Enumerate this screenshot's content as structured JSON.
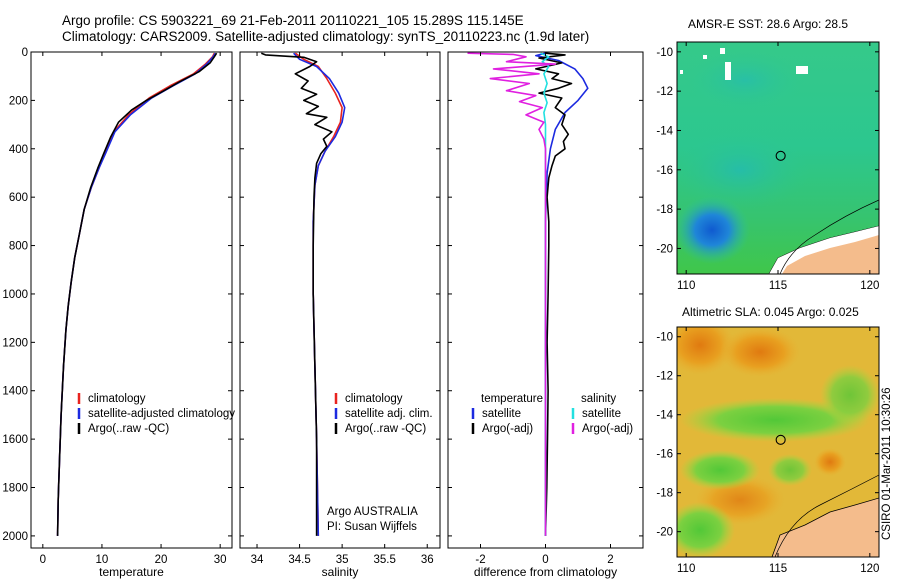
{
  "header": {
    "title_line1": "Argo profile: CS 5903221_69 21-Feb-2011 20110221_105 15.289S 115.145E",
    "title_line2": "Climatology: CARS2009. Satellite-adjusted climatology: synTS_20110223.nc (1.9d later)"
  },
  "stamp": "CSIRO 01-Mar-2011 10:30:26",
  "chart_data": [
    {
      "type": "line",
      "xlabel": "temperature",
      "xlim": [
        -2,
        32
      ],
      "ylim": [
        0,
        2050
      ],
      "y_reversed": true,
      "xticks": [
        0,
        10,
        20,
        30
      ],
      "yticks": [
        0,
        200,
        400,
        600,
        800,
        1000,
        1200,
        1400,
        1600,
        1800,
        2000
      ],
      "legend": {
        "placement": "lower-right",
        "entries": [
          "climatology",
          "satellite-adjusted climatology",
          "Argo(..raw -QC)"
        ]
      },
      "series": [
        {
          "name": "climatology",
          "color": "#e8231f",
          "points": [
            [
              29,
              5
            ],
            [
              28.7,
              20
            ],
            [
              27.5,
              50
            ],
            [
              25.5,
              90
            ],
            [
              21.5,
              140
            ],
            [
              18,
              190
            ],
            [
              14.5,
              260
            ],
            [
              12,
              330
            ],
            [
              10.5,
              420
            ],
            [
              9.5,
              480
            ],
            [
              8.2,
              560
            ],
            [
              7,
              650
            ],
            [
              6.2,
              750
            ],
            [
              5.4,
              850
            ],
            [
              4.8,
              950
            ],
            [
              4.3,
              1050
            ],
            [
              3.9,
              1150
            ],
            [
              3.5,
              1300
            ],
            [
              3.1,
              1500
            ],
            [
              2.8,
              1700
            ],
            [
              2.6,
              1850
            ],
            [
              2.5,
              2000
            ]
          ]
        },
        {
          "name": "satellite-adjusted climatology",
          "color": "#1c2ae0",
          "points": [
            [
              29.2,
              5
            ],
            [
              28.8,
              20
            ],
            [
              27.7,
              50
            ],
            [
              25.8,
              90
            ],
            [
              22,
              140
            ],
            [
              18.4,
              190
            ],
            [
              14.8,
              260
            ],
            [
              12.2,
              330
            ],
            [
              10.6,
              420
            ],
            [
              9.5,
              480
            ],
            [
              8.2,
              560
            ],
            [
              7,
              650
            ],
            [
              6.2,
              750
            ],
            [
              5.4,
              850
            ],
            [
              4.8,
              950
            ],
            [
              4.3,
              1050
            ],
            [
              3.9,
              1150
            ],
            [
              3.5,
              1300
            ],
            [
              3.1,
              1500
            ],
            [
              2.8,
              1700
            ],
            [
              2.6,
              1850
            ],
            [
              2.5,
              2000
            ]
          ]
        },
        {
          "name": "Argo(..raw -QC)",
          "color": "#000000",
          "points": [
            [
              29.4,
              5
            ],
            [
              29,
              20
            ],
            [
              28.3,
              45
            ],
            [
              26.5,
              80
            ],
            [
              23,
              125
            ],
            [
              20.5,
              160
            ],
            [
              17.5,
              200
            ],
            [
              15,
              240
            ],
            [
              12.8,
              290
            ],
            [
              11.5,
              350
            ],
            [
              10.3,
              420
            ],
            [
              9.3,
              480
            ],
            [
              8.1,
              560
            ],
            [
              7,
              650
            ],
            [
              6.2,
              750
            ],
            [
              5.4,
              850
            ],
            [
              4.8,
              950
            ],
            [
              4.3,
              1050
            ],
            [
              3.9,
              1150
            ],
            [
              3.5,
              1300
            ],
            [
              3.1,
              1500
            ],
            [
              2.8,
              1700
            ],
            [
              2.6,
              1850
            ],
            [
              2.5,
              2000
            ]
          ]
        }
      ]
    },
    {
      "type": "line",
      "xlabel": "salinity",
      "xlim": [
        33.8,
        36.15
      ],
      "ylim": [
        0,
        2050
      ],
      "y_reversed": true,
      "xticks": [
        34,
        34.5,
        35,
        35.5,
        36
      ],
      "legend": {
        "placement": "lower-right",
        "entries": [
          "climatology",
          "satellite adj. clim.",
          "Argo(..raw -QC)"
        ]
      },
      "annotation": [
        "Argo AUSTRALIA",
        "PI: Susan Wijffels"
      ],
      "series": [
        {
          "name": "climatology",
          "color": "#e8231f",
          "points": [
            [
              34.45,
              5
            ],
            [
              34.55,
              30
            ],
            [
              34.72,
              60
            ],
            [
              34.82,
              110
            ],
            [
              34.92,
              170
            ],
            [
              35.0,
              230
            ],
            [
              34.98,
              290
            ],
            [
              34.9,
              350
            ],
            [
              34.8,
              410
            ],
            [
              34.72,
              470
            ],
            [
              34.68,
              550
            ],
            [
              34.66,
              700
            ],
            [
              34.66,
              1000
            ],
            [
              34.68,
              1300
            ],
            [
              34.7,
              1600
            ],
            [
              34.72,
              2000
            ]
          ]
        },
        {
          "name": "satellite adj. clim.",
          "color": "#1c2ae0",
          "points": [
            [
              34.43,
              5
            ],
            [
              34.5,
              30
            ],
            [
              34.7,
              60
            ],
            [
              34.85,
              110
            ],
            [
              34.96,
              170
            ],
            [
              35.03,
              230
            ],
            [
              35.0,
              290
            ],
            [
              34.92,
              350
            ],
            [
              34.8,
              410
            ],
            [
              34.72,
              470
            ],
            [
              34.68,
              550
            ],
            [
              34.66,
              700
            ],
            [
              34.66,
              1000
            ],
            [
              34.68,
              1300
            ],
            [
              34.7,
              1600
            ],
            [
              34.72,
              2000
            ]
          ]
        },
        {
          "name": "Argo(..raw -QC)",
          "color": "#000000",
          "points": [
            [
              34.05,
              5
            ],
            [
              34.1,
              12
            ],
            [
              34.55,
              22
            ],
            [
              34.7,
              40
            ],
            [
              34.62,
              60
            ],
            [
              34.45,
              90
            ],
            [
              34.6,
              120
            ],
            [
              34.52,
              150
            ],
            [
              34.7,
              175
            ],
            [
              34.55,
              200
            ],
            [
              34.72,
              225
            ],
            [
              34.58,
              255
            ],
            [
              34.82,
              270
            ],
            [
              34.68,
              300
            ],
            [
              34.88,
              330
            ],
            [
              34.78,
              360
            ],
            [
              34.82,
              390
            ],
            [
              34.75,
              420
            ],
            [
              34.7,
              460
            ],
            [
              34.68,
              520
            ],
            [
              34.67,
              600
            ],
            [
              34.66,
              800
            ],
            [
              34.66,
              1000
            ],
            [
              34.68,
              1300
            ],
            [
              34.7,
              1600
            ],
            [
              34.7,
              2000
            ]
          ]
        }
      ]
    },
    {
      "type": "line",
      "xlabel": "difference from climatology",
      "xlim": [
        -3,
        3
      ],
      "ylim": [
        0,
        2050
      ],
      "y_reversed": true,
      "xticks": [
        -2,
        0,
        2
      ],
      "legend": {
        "placement": "lower-center",
        "groups": [
          {
            "title": "temperature",
            "entries": [
              "satellite",
              "Argo(-adj)"
            ]
          },
          {
            "title": "salinity",
            "entries": [
              "satellite",
              "Argo(-adj)"
            ]
          }
        ]
      },
      "series": [
        {
          "name": "satellite",
          "group": "temperature",
          "color": "#1c2ae0",
          "points": [
            [
              0,
              5
            ],
            [
              -0.3,
              15
            ],
            [
              0.4,
              35
            ],
            [
              0.9,
              70
            ],
            [
              1.15,
              110
            ],
            [
              1.3,
              150
            ],
            [
              1.0,
              200
            ],
            [
              0.6,
              250
            ],
            [
              0.3,
              320
            ],
            [
              0.15,
              400
            ],
            [
              0.05,
              500
            ],
            [
              0,
              700
            ],
            [
              0,
              1000
            ],
            [
              0,
              2000
            ]
          ]
        },
        {
          "name": "Argo(-adj)",
          "group": "temperature",
          "color": "#000000",
          "points": [
            [
              0,
              5
            ],
            [
              0.6,
              12
            ],
            [
              -0.2,
              25
            ],
            [
              0.5,
              45
            ],
            [
              -0.3,
              70
            ],
            [
              0.4,
              90
            ],
            [
              0.2,
              110
            ],
            [
              0.8,
              130
            ],
            [
              0.4,
              150
            ],
            [
              -0.2,
              170
            ],
            [
              0.5,
              190
            ],
            [
              0.3,
              230
            ],
            [
              0.6,
              260
            ],
            [
              0.5,
              300
            ],
            [
              0.7,
              340
            ],
            [
              0.55,
              370
            ],
            [
              0.6,
              400
            ],
            [
              0.3,
              430
            ],
            [
              0.2,
              470
            ],
            [
              0.1,
              520
            ],
            [
              0.05,
              600
            ],
            [
              0.1,
              700
            ],
            [
              0.1,
              800
            ],
            [
              0.08,
              1000
            ],
            [
              0.05,
              1200
            ],
            [
              0.08,
              1400
            ],
            [
              0.06,
              1600
            ],
            [
              0.04,
              1800
            ],
            [
              0,
              2000
            ]
          ]
        },
        {
          "name": "satellite",
          "group": "salinity",
          "color": "#22e0e0",
          "points": [
            [
              -0.15,
              5
            ],
            [
              0.1,
              20
            ],
            [
              -0.1,
              40
            ],
            [
              0.1,
              60
            ],
            [
              -0.05,
              90
            ],
            [
              0.05,
              130
            ],
            [
              -0.05,
              170
            ],
            [
              0.05,
              210
            ],
            [
              -0.05,
              250
            ],
            [
              0,
              300
            ],
            [
              0,
              400
            ],
            [
              0,
              500
            ],
            [
              0,
              700
            ],
            [
              0,
              1000
            ],
            [
              0,
              2000
            ]
          ]
        },
        {
          "name": "Argo(-adj)",
          "group": "salinity",
          "color": "#e020e0",
          "points": [
            [
              -2.4,
              5
            ],
            [
              -1.0,
              10
            ],
            [
              -0.6,
              20
            ],
            [
              -1.2,
              40
            ],
            [
              0.3,
              50
            ],
            [
              -1.6,
              70
            ],
            [
              -0.2,
              90
            ],
            [
              -1.7,
              110
            ],
            [
              -0.5,
              130
            ],
            [
              -1.2,
              160
            ],
            [
              -0.3,
              180
            ],
            [
              -0.8,
              205
            ],
            [
              -0.1,
              230
            ],
            [
              -0.6,
              260
            ],
            [
              -0.05,
              290
            ],
            [
              -0.2,
              320
            ],
            [
              -0.05,
              360
            ],
            [
              0,
              400
            ],
            [
              0,
              500
            ],
            [
              0,
              1000
            ],
            [
              0,
              2000
            ]
          ]
        }
      ]
    }
  ],
  "maps": [
    {
      "title": "AMSR-E SST: 28.6 Argo: 28.5",
      "xticks": [
        110,
        115,
        120
      ],
      "yticks": [
        -10,
        -12,
        -14,
        -16,
        -18,
        -20
      ],
      "lon": [
        109.5,
        120.5
      ],
      "lat": [
        -21.3,
        -9.5
      ],
      "float_lon": 115.145,
      "float_lat": -15.289
    },
    {
      "title": "Altimetric SLA: 0.045 Argo: 0.025",
      "xticks": [
        110,
        115,
        120
      ],
      "yticks": [
        -10,
        -12,
        -14,
        -16,
        -18,
        -20
      ],
      "lon": [
        109.5,
        120.5
      ],
      "lat": [
        -21.3,
        -9.5
      ],
      "float_lon": 115.145,
      "float_lat": -15.289
    }
  ]
}
